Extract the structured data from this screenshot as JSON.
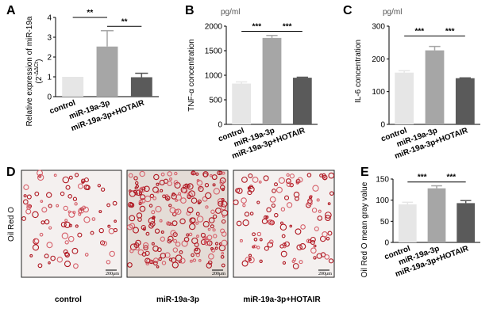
{
  "colors": {
    "control": "#e6e6e6",
    "mir": "#a6a6a6",
    "hotair": "#5a5a5a",
    "stain": "#b01822",
    "stain_light": "#d6606a",
    "bg_img": "#f3eeee"
  },
  "chart_data": [
    {
      "panel": "A",
      "type": "bar",
      "title": "",
      "ylabel_main": "Relative expression of miR-19a",
      "ylabel_sub": "(2",
      "ylabel_exp": "-ΔΔCt",
      "ylabel_close": ")",
      "unit": "",
      "categories": [
        "control",
        "miR-19a-3p",
        "miR-19a-3p+HOTAIR"
      ],
      "values": [
        1.0,
        2.53,
        0.98
      ],
      "errors": [
        0.0,
        0.8,
        0.2
      ],
      "ylim": [
        0,
        4
      ],
      "yticks": [
        "0",
        "1",
        "2",
        "3",
        "4"
      ],
      "significance": [
        {
          "from": 0,
          "to": 1,
          "label": "**",
          "y": 4.0
        },
        {
          "from": 1,
          "to": 2,
          "label": "**",
          "y": 3.55
        }
      ]
    },
    {
      "panel": "B",
      "type": "bar",
      "title": "",
      "ylabel_main": "TNF-α  concentration",
      "unit": "pg/ml",
      "categories": [
        "control",
        "miR-19a-3p",
        "miR-19a-3p+HOTAIR"
      ],
      "values": [
        830,
        1760,
        950
      ],
      "errors": [
        35,
        50,
        10
      ],
      "ylim": [
        0,
        2000
      ],
      "yticks": [
        "0",
        "500",
        "1000",
        "1500",
        "2000"
      ],
      "significance": [
        {
          "from": 0,
          "to": 1,
          "label": "***",
          "y": 1895
        },
        {
          "from": 1,
          "to": 2,
          "label": "***",
          "y": 1895
        }
      ]
    },
    {
      "panel": "C",
      "type": "bar",
      "title": "",
      "ylabel_main": "IL-6 concentration",
      "unit": "pg/ml",
      "categories": [
        "control",
        "miR-19a-3p",
        "miR-19a-3p+HOTAIR"
      ],
      "values": [
        158,
        226,
        141
      ],
      "errors": [
        6,
        12,
        1
      ],
      "ylim": [
        0,
        300
      ],
      "yticks": [
        "0",
        "100",
        "200",
        "300"
      ],
      "significance": [
        {
          "from": 0,
          "to": 1,
          "label": "***",
          "y": 270
        },
        {
          "from": 1,
          "to": 2,
          "label": "***",
          "y": 270
        }
      ]
    },
    {
      "panel": "E",
      "type": "bar",
      "title": "",
      "ylabel_main": "Oil Red O mean gray value",
      "unit": "",
      "categories": [
        "control",
        "miR-19a-3p",
        "miR-19a-3p+HOTAIR"
      ],
      "values": [
        90,
        128,
        93
      ],
      "errors": [
        5,
        6,
        6
      ],
      "ylim": [
        0,
        150
      ],
      "yticks": [
        "0",
        "50",
        "100",
        "150"
      ],
      "significance": [
        {
          "from": 0,
          "to": 1,
          "label": "***",
          "y": 143
        },
        {
          "from": 1,
          "to": 2,
          "label": "***",
          "y": 143
        }
      ]
    }
  ],
  "panel_d": {
    "letter": "D",
    "side_label": "Oil Red O",
    "captions": [
      "control",
      "miR-19a-3p",
      "miR-19a-3p+HOTAIR"
    ],
    "scale_label": "200μm",
    "stain_density": [
      0.35,
      0.85,
      0.45
    ]
  }
}
